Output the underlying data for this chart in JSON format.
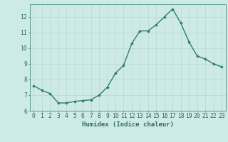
{
  "x": [
    0,
    1,
    2,
    3,
    4,
    5,
    6,
    7,
    8,
    9,
    10,
    11,
    12,
    13,
    14,
    15,
    16,
    17,
    18,
    19,
    20,
    21,
    22,
    23
  ],
  "y": [
    7.6,
    7.3,
    7.1,
    6.5,
    6.5,
    6.6,
    6.65,
    6.7,
    7.0,
    7.5,
    8.4,
    8.9,
    10.3,
    11.1,
    11.1,
    11.5,
    12.0,
    12.5,
    11.6,
    10.4,
    9.5,
    9.3,
    9.0,
    8.8
  ],
  "line_color": "#2e7d6e",
  "marker": "D",
  "markersize": 1.8,
  "linewidth": 1.0,
  "xlabel": "Humidex (Indice chaleur)",
  "xlim": [
    -0.5,
    23.5
  ],
  "ylim": [
    6.0,
    12.8
  ],
  "yticks": [
    6,
    7,
    8,
    9,
    10,
    11,
    12
  ],
  "xticks": [
    0,
    1,
    2,
    3,
    4,
    5,
    6,
    7,
    8,
    9,
    10,
    11,
    12,
    13,
    14,
    15,
    16,
    17,
    18,
    19,
    20,
    21,
    22,
    23
  ],
  "bg_color": "#ceeae7",
  "grid_color": "#b8d8d4",
  "spine_color": "#5a9a90",
  "tick_color": "#2e6b60",
  "label_color": "#2e6b60",
  "xlabel_fontsize": 6.5,
  "tick_fontsize": 5.8
}
